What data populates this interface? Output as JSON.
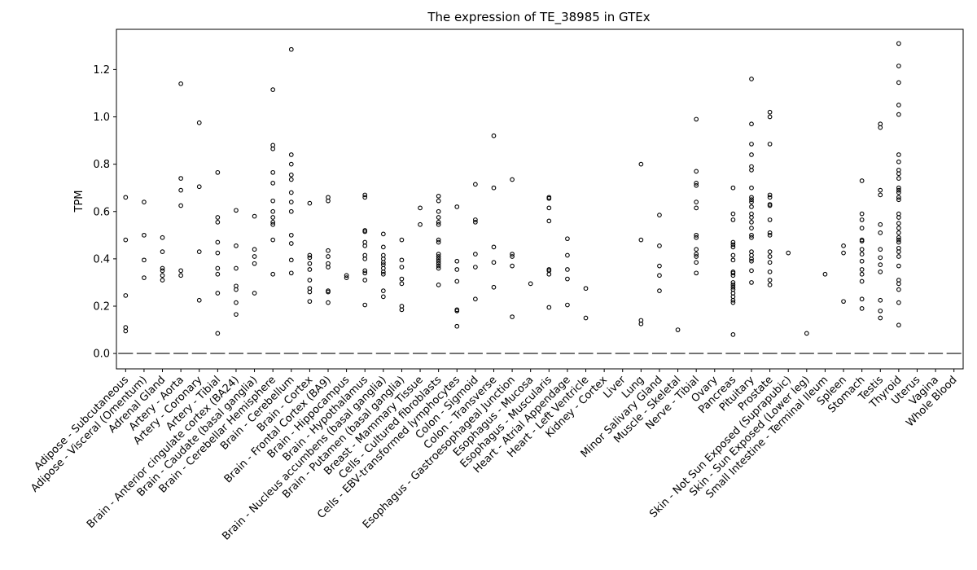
{
  "chart_data": {
    "type": "boxplot",
    "title": "The expression of TE_38985 in GTEx",
    "xlabel": "",
    "ylabel": "TPM",
    "ylim": [
      -0.065,
      1.37
    ],
    "yticks": [
      0.0,
      0.2,
      0.4,
      0.6,
      0.8,
      1.0,
      1.2
    ],
    "ytick_labels": [
      "0.0",
      "0.2",
      "0.4",
      "0.6",
      "0.8",
      "1.0",
      "1.2"
    ],
    "grid": false,
    "median_line_color": "#555555",
    "marker_color": "#000000",
    "categories": [
      "Adipose - Subcutaneous",
      "Adipose - Visceral (Omentum)",
      "Adrenal Gland",
      "Artery - Aorta",
      "Artery - Coronary",
      "Artery - Tibial",
      "Brain - Anterior cingulate cortex (BA24)",
      "Brain - Caudate (basal ganglia)",
      "Brain - Cerebellar Hemisphere",
      "Brain - Cerebellum",
      "Brain - Cortex",
      "Brain - Frontal Cortex (BA9)",
      "Brain - Hippocampus",
      "Brain - Hypothalamus",
      "Brain - Nucleus accumbens (basal ganglia)",
      "Brain - Putamen (basal ganglia)",
      "Breast - Mammary Tissue",
      "Cells - Cultured fibroblasts",
      "Cells - EBV-transformed lymphocytes",
      "Colon - Sigmoid",
      "Colon - Transverse",
      "Esophagus - Gastroesophageal Junction",
      "Esophagus - Mucosa",
      "Esophagus - Muscularis",
      "Heart - Atrial Appendage",
      "Heart - Left Ventricle",
      "Kidney - Cortex",
      "Liver",
      "Lung",
      "Minor Salivary Gland",
      "Muscle - Skeletal",
      "Nerve - Tibial",
      "Ovary",
      "Pancreas",
      "Pituitary",
      "Prostate",
      "Skin - Not Sun Exposed (Suprapubic)",
      "Skin - Sun Exposed (Lower leg)",
      "Small Intestine - Terminal Ileum",
      "Spleen",
      "Stomach",
      "Testis",
      "Thyroid",
      "Uterus",
      "Vagina",
      "Whole Blood"
    ],
    "medians": [
      0,
      0,
      0,
      0,
      0,
      0,
      0,
      0,
      0,
      0,
      0,
      0,
      0,
      0,
      0,
      0,
      0,
      0,
      0,
      0,
      0,
      0,
      0,
      0,
      0,
      0,
      0,
      0,
      0,
      0,
      0,
      0,
      0,
      0,
      0,
      0,
      0,
      0,
      0,
      0,
      0,
      0,
      0,
      0,
      0,
      0
    ],
    "outliers": [
      [
        0.66,
        0.48,
        0.245,
        0.11,
        0.095
      ],
      [
        0.64,
        0.5,
        0.395,
        0.32
      ],
      [
        0.49,
        0.43,
        0.36,
        0.35,
        0.33,
        0.31
      ],
      [
        1.14,
        0.74,
        0.69,
        0.625,
        0.35,
        0.33
      ],
      [
        0.975,
        0.705,
        0.43,
        0.225
      ],
      [
        0.765,
        0.575,
        0.555,
        0.47,
        0.425,
        0.36,
        0.335,
        0.255,
        0.085
      ],
      [
        0.605,
        0.455,
        0.36,
        0.285,
        0.27,
        0.215,
        0.165
      ],
      [
        0.58,
        0.44,
        0.41,
        0.38,
        0.255
      ],
      [
        1.115,
        0.88,
        0.865,
        0.765,
        0.72,
        0.645,
        0.6,
        0.575,
        0.555,
        0.545,
        0.48,
        0.335
      ],
      [
        1.285,
        0.84,
        0.8,
        0.755,
        0.735,
        0.68,
        0.64,
        0.6,
        0.5,
        0.465,
        0.395,
        0.34
      ],
      [
        0.635,
        0.415,
        0.405,
        0.38,
        0.355,
        0.31,
        0.275,
        0.26,
        0.22
      ],
      [
        0.66,
        0.645,
        0.435,
        0.41,
        0.38,
        0.365,
        0.265,
        0.26,
        0.215
      ],
      [
        0.33,
        0.32
      ],
      [
        0.67,
        0.66,
        0.52,
        0.515,
        0.47,
        0.455,
        0.415,
        0.4,
        0.35,
        0.34,
        0.31,
        0.205
      ],
      [
        0.505,
        0.45,
        0.415,
        0.4,
        0.385,
        0.375,
        0.36,
        0.345,
        0.335,
        0.265,
        0.24
      ],
      [
        0.48,
        0.395,
        0.365,
        0.315,
        0.295,
        0.2,
        0.185
      ],
      [
        0.615,
        0.545
      ],
      [
        0.665,
        0.645,
        0.6,
        0.575,
        0.555,
        0.545,
        0.48,
        0.47,
        0.42,
        0.41,
        0.4,
        0.39,
        0.38,
        0.37,
        0.36,
        0.29
      ],
      [
        0.62,
        0.39,
        0.355,
        0.305,
        0.185,
        0.18,
        0.115
      ],
      [
        0.715,
        0.565,
        0.555,
        0.42,
        0.365,
        0.23
      ],
      [
        0.92,
        0.7,
        0.45,
        0.385,
        0.28
      ],
      [
        0.735,
        0.42,
        0.41,
        0.37,
        0.155
      ],
      [
        0.295
      ],
      [
        0.66,
        0.655,
        0.615,
        0.56,
        0.355,
        0.35,
        0.335,
        0.195
      ],
      [
        0.485,
        0.415,
        0.355,
        0.315,
        0.205
      ],
      [
        0.275,
        0.15
      ],
      [],
      [],
      [
        0.8,
        0.48,
        0.14,
        0.125
      ],
      [
        0.585,
        0.455,
        0.37,
        0.33,
        0.265
      ],
      [
        0.1
      ],
      [
        0.99,
        0.77,
        0.72,
        0.71,
        0.64,
        0.615,
        0.5,
        0.49,
        0.44,
        0.42,
        0.41,
        0.385,
        0.34
      ],
      [],
      [
        0.7,
        0.59,
        0.565,
        0.47,
        0.46,
        0.45,
        0.415,
        0.395,
        0.345,
        0.34,
        0.33,
        0.3,
        0.29,
        0.28,
        0.27,
        0.255,
        0.24,
        0.225,
        0.215,
        0.08
      ],
      [
        1.16,
        0.97,
        0.885,
        0.84,
        0.79,
        0.775,
        0.7,
        0.66,
        0.65,
        0.64,
        0.62,
        0.59,
        0.575,
        0.555,
        0.53,
        0.5,
        0.49,
        0.43,
        0.415,
        0.4,
        0.39,
        0.35,
        0.3
      ],
      [
        1.02,
        1.0,
        0.885,
        0.67,
        0.66,
        0.63,
        0.625,
        0.565,
        0.51,
        0.5,
        0.43,
        0.41,
        0.385,
        0.345,
        0.31,
        0.29
      ],
      [
        0.425
      ],
      [
        0.085
      ],
      [
        0.335
      ],
      [
        0.455,
        0.425,
        0.22
      ],
      [
        0.73,
        0.59,
        0.565,
        0.53,
        0.48,
        0.475,
        0.44,
        0.42,
        0.39,
        0.355,
        0.335,
        0.305,
        0.23,
        0.19
      ],
      [
        0.97,
        0.955,
        0.69,
        0.67,
        0.545,
        0.51,
        0.44,
        0.405,
        0.375,
        0.345,
        0.225,
        0.18,
        0.15
      ],
      [
        1.31,
        1.215,
        1.145,
        1.05,
        1.01,
        0.84,
        0.81,
        0.775,
        0.76,
        0.74,
        0.7,
        0.69,
        0.68,
        0.66,
        0.65,
        0.59,
        0.575,
        0.55,
        0.53,
        0.51,
        0.49,
        0.48,
        0.47,
        0.445,
        0.43,
        0.41,
        0.37,
        0.31,
        0.295,
        0.27,
        0.215,
        0.12
      ],
      [],
      [],
      []
    ]
  }
}
